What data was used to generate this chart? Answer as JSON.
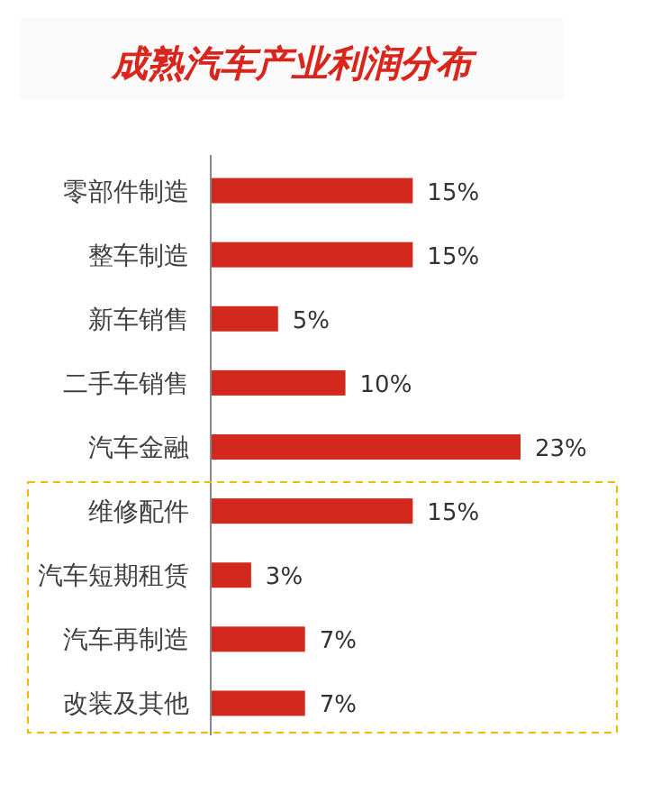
{
  "chart_data": {
    "type": "bar",
    "orientation": "horizontal",
    "title": "成熟汽车产业利润分布",
    "categories": [
      "零部件制造",
      "整车制造",
      "新车销售",
      "二手车销售",
      "汽车金融",
      "维修配件",
      "汽车短期租赁",
      "汽车再制造",
      "改装及其他"
    ],
    "values": [
      15,
      15,
      5,
      10,
      23,
      15,
      3,
      7,
      7
    ],
    "value_labels": [
      "15%",
      "15%",
      "5%",
      "10%",
      "23%",
      "15%",
      "3%",
      "7%",
      "7%"
    ],
    "color": "#d2281d"
  }
}
